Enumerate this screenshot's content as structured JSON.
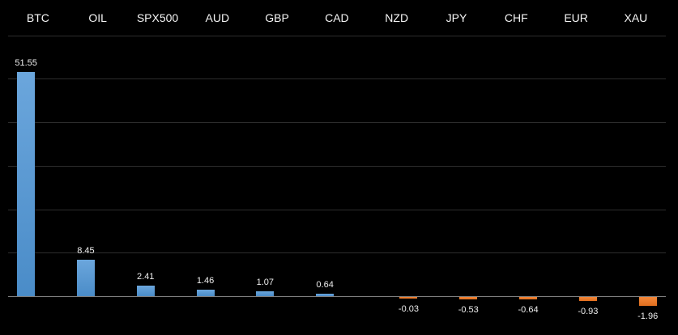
{
  "chart_data": {
    "type": "bar",
    "title": "",
    "xlabel": "",
    "ylabel": "",
    "categories": [
      "BTC",
      "OIL",
      "SPX500",
      "AUD",
      "GBP",
      "CAD",
      "NZD",
      "JPY",
      "CHF",
      "EUR",
      "XAU"
    ],
    "values": [
      51.55,
      8.45,
      2.41,
      1.46,
      1.07,
      0.64,
      -0.03,
      -0.53,
      -0.64,
      -0.93,
      -1.96
    ],
    "value_label_format": "0.00",
    "value_labels": [
      "51.55",
      "8.45",
      "2.41",
      "1.46",
      "1.07",
      "0.64",
      "-0.03",
      "-0.53",
      "-0.64",
      "-0.93",
      "-1.96"
    ],
    "category_labels_position": "top",
    "ylim": [
      -10,
      60
    ],
    "gridline_step": 10,
    "grid": true,
    "legend": "none",
    "colors": {
      "background": "#000000",
      "positive_bar": "#5b9bd5",
      "negative_bar": "#ed7d31",
      "gridline": "#2d2d2d",
      "zero_axis": "#7f7f7f",
      "category_text": "#f5f5f5",
      "value_text": "#eeeeee"
    }
  }
}
